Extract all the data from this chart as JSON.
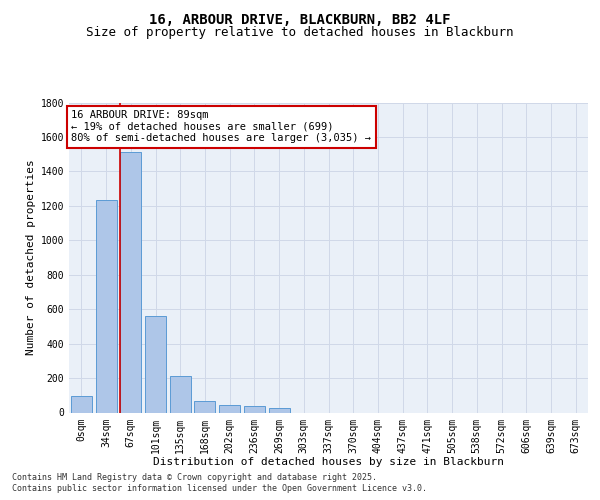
{
  "title": "16, ARBOUR DRIVE, BLACKBURN, BB2 4LF",
  "subtitle": "Size of property relative to detached houses in Blackburn",
  "xlabel": "Distribution of detached houses by size in Blackburn",
  "ylabel": "Number of detached properties",
  "categories": [
    "0sqm",
    "34sqm",
    "67sqm",
    "101sqm",
    "135sqm",
    "168sqm",
    "202sqm",
    "236sqm",
    "269sqm",
    "303sqm",
    "337sqm",
    "370sqm",
    "404sqm",
    "437sqm",
    "471sqm",
    "505sqm",
    "538sqm",
    "572sqm",
    "606sqm",
    "639sqm",
    "673sqm"
  ],
  "values": [
    95,
    1235,
    1515,
    560,
    210,
    65,
    45,
    35,
    28,
    0,
    0,
    0,
    0,
    0,
    0,
    0,
    0,
    0,
    0,
    0,
    0
  ],
  "bar_color": "#aec6e8",
  "bar_edge_color": "#5b9bd5",
  "grid_color": "#d0d8e8",
  "background_color": "#eaf0f8",
  "property_line_x": 1.575,
  "property_line_color": "#cc0000",
  "annotation_text": "16 ARBOUR DRIVE: 89sqm\n← 19% of detached houses are smaller (699)\n80% of semi-detached houses are larger (3,035) →",
  "annotation_box_color": "#cc0000",
  "ylim": [
    0,
    1800
  ],
  "yticks": [
    0,
    200,
    400,
    600,
    800,
    1000,
    1200,
    1400,
    1600,
    1800
  ],
  "footer_line1": "Contains HM Land Registry data © Crown copyright and database right 2025.",
  "footer_line2": "Contains public sector information licensed under the Open Government Licence v3.0.",
  "title_fontsize": 10,
  "subtitle_fontsize": 9,
  "axis_label_fontsize": 8,
  "tick_fontsize": 7,
  "annotation_fontsize": 7.5,
  "footer_fontsize": 6
}
